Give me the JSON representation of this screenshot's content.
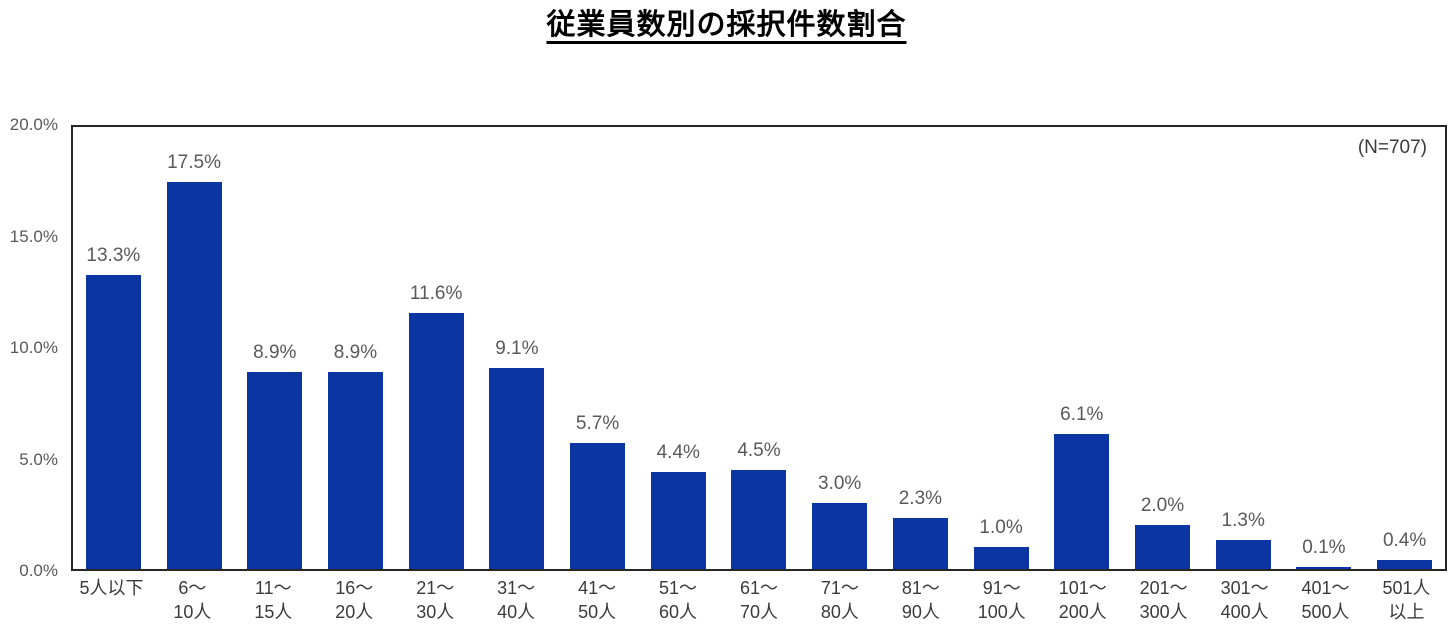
{
  "page": {
    "background": "#ffffff"
  },
  "chart_data": {
    "type": "bar",
    "title": "従業員数別の採択件数割合",
    "annotation": "(N=707)",
    "xlabel": "",
    "ylabel": "",
    "ylim": [
      0,
      20
    ],
    "grid": false,
    "legend": "none",
    "yticks": [
      "0.0%",
      "5.0%",
      "10.0%",
      "15.0%",
      "20.0%"
    ],
    "categories": [
      [
        "5人以下"
      ],
      [
        "6～",
        "10人"
      ],
      [
        "11～",
        "15人"
      ],
      [
        "16～",
        "20人"
      ],
      [
        "21～",
        "30人"
      ],
      [
        "31～",
        "40人"
      ],
      [
        "41～",
        "50人"
      ],
      [
        "51～",
        "60人"
      ],
      [
        "61～",
        "70人"
      ],
      [
        "71～",
        "80人"
      ],
      [
        "81～",
        "90人"
      ],
      [
        "91～",
        "100人"
      ],
      [
        "101～",
        "200人"
      ],
      [
        "201～",
        "300人"
      ],
      [
        "301～",
        "400人"
      ],
      [
        "401～",
        "500人"
      ],
      [
        "501人",
        "以上"
      ]
    ],
    "values": [
      13.3,
      17.5,
      8.9,
      8.9,
      11.6,
      9.1,
      5.7,
      4.4,
      4.5,
      3.0,
      2.3,
      1.0,
      6.1,
      2.0,
      1.3,
      0.1,
      0.4
    ],
    "value_labels": [
      "13.3%",
      "17.5%",
      "8.9%",
      "8.9%",
      "11.6%",
      "9.1%",
      "5.7%",
      "4.4%",
      "4.5%",
      "3.0%",
      "2.3%",
      "1.0%",
      "6.1%",
      "2.0%",
      "1.3%",
      "0.1%",
      "0.4%"
    ],
    "colors": {
      "bar": "#0b35a2",
      "tick_label": "#595959",
      "value_label": "#595959",
      "axis_label": "#3b3b3b",
      "border": "#262626",
      "title": "#000000"
    }
  }
}
